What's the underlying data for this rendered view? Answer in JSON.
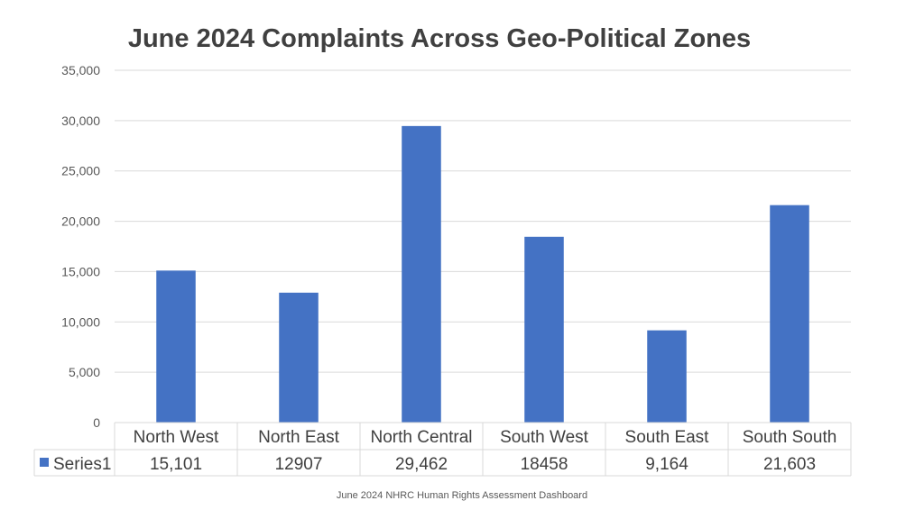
{
  "chart_data": {
    "type": "bar",
    "title": "June 2024 Complaints Across Geo-Political Zones",
    "categories": [
      "North West",
      "North East",
      "North Central",
      "South West",
      "South East",
      "South South"
    ],
    "series": [
      {
        "name": "Series1",
        "values": [
          15101,
          12907,
          29462,
          18458,
          9164,
          21603
        ],
        "display_values": [
          "15,101",
          "12907",
          "29,462",
          "18458",
          "9,164",
          "21,603"
        ],
        "color": "#4472C4"
      }
    ],
    "ylim": [
      0,
      35000
    ],
    "yticks": [
      0,
      5000,
      10000,
      15000,
      20000,
      25000,
      30000,
      35000
    ],
    "ytick_labels": [
      "0",
      "5,000",
      "10,000",
      "15,000",
      "20,000",
      "25,000",
      "30,000",
      "35,000"
    ],
    "grid": true,
    "legend": "data-table",
    "xlabel": "",
    "ylabel": ""
  },
  "footer": "June 2024 NHRC Human Rights Assessment Dashboard"
}
